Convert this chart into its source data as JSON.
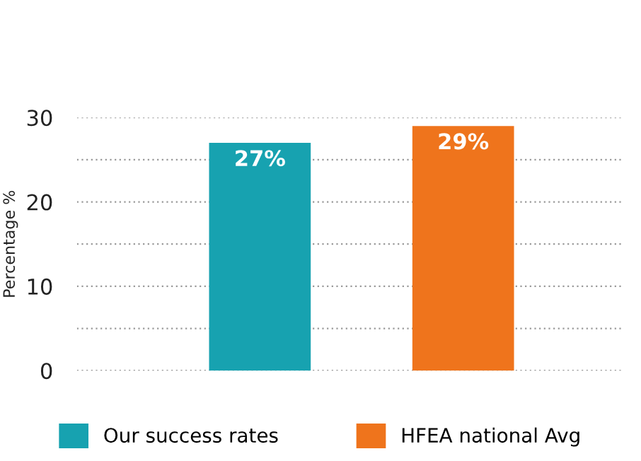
{
  "chart_data": {
    "type": "bar",
    "ylabel": "Percentage %",
    "categories": [
      null,
      null
    ],
    "series": [
      {
        "name": "Our success rates",
        "color": "#17a2b0",
        "values": [
          27,
          null
        ],
        "value_labels": [
          "27%",
          null
        ]
      },
      {
        "name": "HFEA national Avg",
        "color": "#ef741c",
        "values": [
          null,
          29
        ],
        "value_labels": [
          null,
          "29%"
        ]
      }
    ],
    "ylim": [
      0,
      30
    ],
    "yticks": [
      0,
      {
        "value": 5,
        "label": null
      },
      10,
      {
        "value": 15,
        "label": null
      },
      20,
      {
        "value": 25,
        "label": null
      },
      30
    ],
    "grid": "y",
    "legend": "bottom"
  }
}
